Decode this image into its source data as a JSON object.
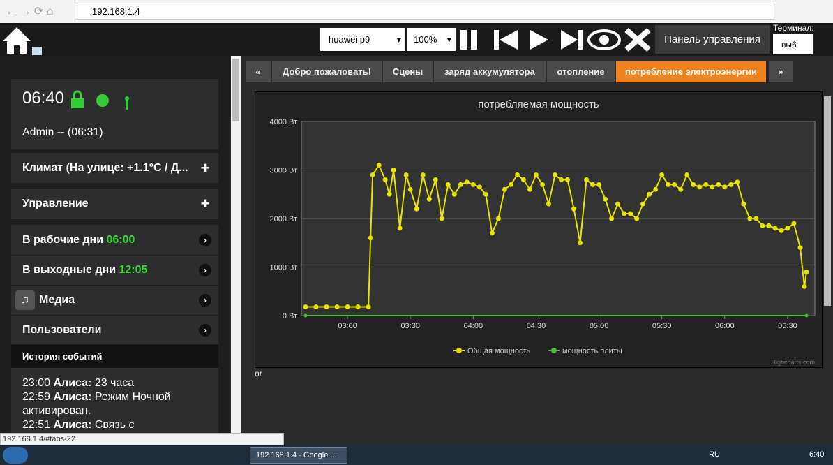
{
  "browser": {
    "url": "192.168.1.4",
    "status_url": "192.168.1.4/#tabs-22",
    "tab_title": "192.168.1.4 - Google ..."
  },
  "toolbar": {
    "device": "huawei p9",
    "zoom": "100%",
    "control_panel": "Панель управления",
    "terminal_label": "Терминал:",
    "terminal_value": "вы6"
  },
  "sidebar": {
    "clock": "06:40",
    "user": "Admin -- (06:31)",
    "climate": "Климат (На улице: +1.1°C / Д...",
    "control": "Управление",
    "workdays": "В рабочие дни",
    "workdays_time": "06:00",
    "weekends": "В выходные дни",
    "weekends_time": "12:05",
    "media": "Медиа",
    "users": "Пользователи",
    "history_title": "История событий",
    "events": [
      {
        "time": "23:00",
        "who": "Алиса:",
        "text": "23 часа"
      },
      {
        "time": "22:59",
        "who": "Алиса:",
        "text": "Режим Ночной активирован."
      },
      {
        "time": "22:51",
        "who": "Алиса:",
        "text": "Связь с"
      }
    ]
  },
  "tabs": [
    "«",
    "Добро пожаловать!",
    "Сцены",
    "заряд аккумулятора",
    "отопление",
    "потребление электроэнергии",
    "»"
  ],
  "chart_data": {
    "type": "line",
    "title": "потребляемая мощность",
    "credit": "Highcharts.com",
    "xlim": [
      "02:38",
      "06:43"
    ],
    "xticks": [
      "03:00",
      "03:30",
      "04:00",
      "04:30",
      "05:00",
      "05:30",
      "06:00",
      "06:30"
    ],
    "ylim": [
      0,
      4000
    ],
    "yticks": [
      {
        "value": 0,
        "label": "0 Вт"
      },
      {
        "value": 1000,
        "label": "1000 Вт"
      },
      {
        "value": 2000,
        "label": "2000 Вт"
      },
      {
        "value": 3000,
        "label": "3000 Вт"
      },
      {
        "value": 4000,
        "label": "4000 Вт"
      }
    ],
    "grid": true,
    "series": [
      {
        "name": "Общая мощность",
        "color": "#e5e500",
        "x": [
          "02:40",
          "02:45",
          "02:50",
          "02:55",
          "03:00",
          "03:05",
          "03:10",
          "03:11",
          "03:12",
          "03:15",
          "03:18",
          "03:20",
          "03:22",
          "03:25",
          "03:28",
          "03:30",
          "03:33",
          "03:36",
          "03:39",
          "03:42",
          "03:45",
          "03:48",
          "03:51",
          "03:54",
          "03:57",
          "04:00",
          "04:03",
          "04:06",
          "04:09",
          "04:12",
          "04:15",
          "04:18",
          "04:21",
          "04:24",
          "04:27",
          "04:30",
          "04:33",
          "04:36",
          "04:39",
          "04:42",
          "04:45",
          "04:48",
          "04:51",
          "04:54",
          "04:57",
          "05:00",
          "05:03",
          "05:06",
          "05:09",
          "05:12",
          "05:15",
          "05:18",
          "05:21",
          "05:24",
          "05:27",
          "05:30",
          "05:33",
          "05:36",
          "05:39",
          "05:42",
          "05:45",
          "05:48",
          "05:51",
          "05:54",
          "05:57",
          "06:00",
          "06:03",
          "06:06",
          "06:09",
          "06:12",
          "06:15",
          "06:18",
          "06:21",
          "06:24",
          "06:27",
          "06:30",
          "06:33",
          "06:36",
          "06:38",
          "06:39"
        ],
        "values": [
          180,
          180,
          180,
          180,
          180,
          180,
          180,
          1600,
          2900,
          3100,
          2800,
          2500,
          3000,
          1800,
          2900,
          2600,
          2200,
          2900,
          2400,
          2800,
          2000,
          2700,
          2500,
          2700,
          2750,
          2700,
          2650,
          2500,
          1700,
          2000,
          2600,
          2700,
          2900,
          2800,
          2600,
          2900,
          2700,
          2300,
          2900,
          2800,
          2800,
          2200,
          1500,
          2800,
          2700,
          2700,
          2400,
          2000,
          2300,
          2100,
          2100,
          2000,
          2300,
          2500,
          2600,
          2900,
          2700,
          2700,
          2600,
          2900,
          2700,
          2650,
          2700,
          2650,
          2700,
          2650,
          2700,
          2750,
          2300,
          2000,
          2000,
          1850,
          1850,
          1800,
          1750,
          1800,
          1900,
          1400,
          600,
          900
        ]
      },
      {
        "name": "мощность плиты",
        "color": "#4cbb3c",
        "x": [
          "02:40",
          "06:39"
        ],
        "values": [
          0,
          0
        ]
      }
    ]
  },
  "footer_text": "or",
  "taskbar": {
    "lang": "RU",
    "time": "6:40"
  }
}
